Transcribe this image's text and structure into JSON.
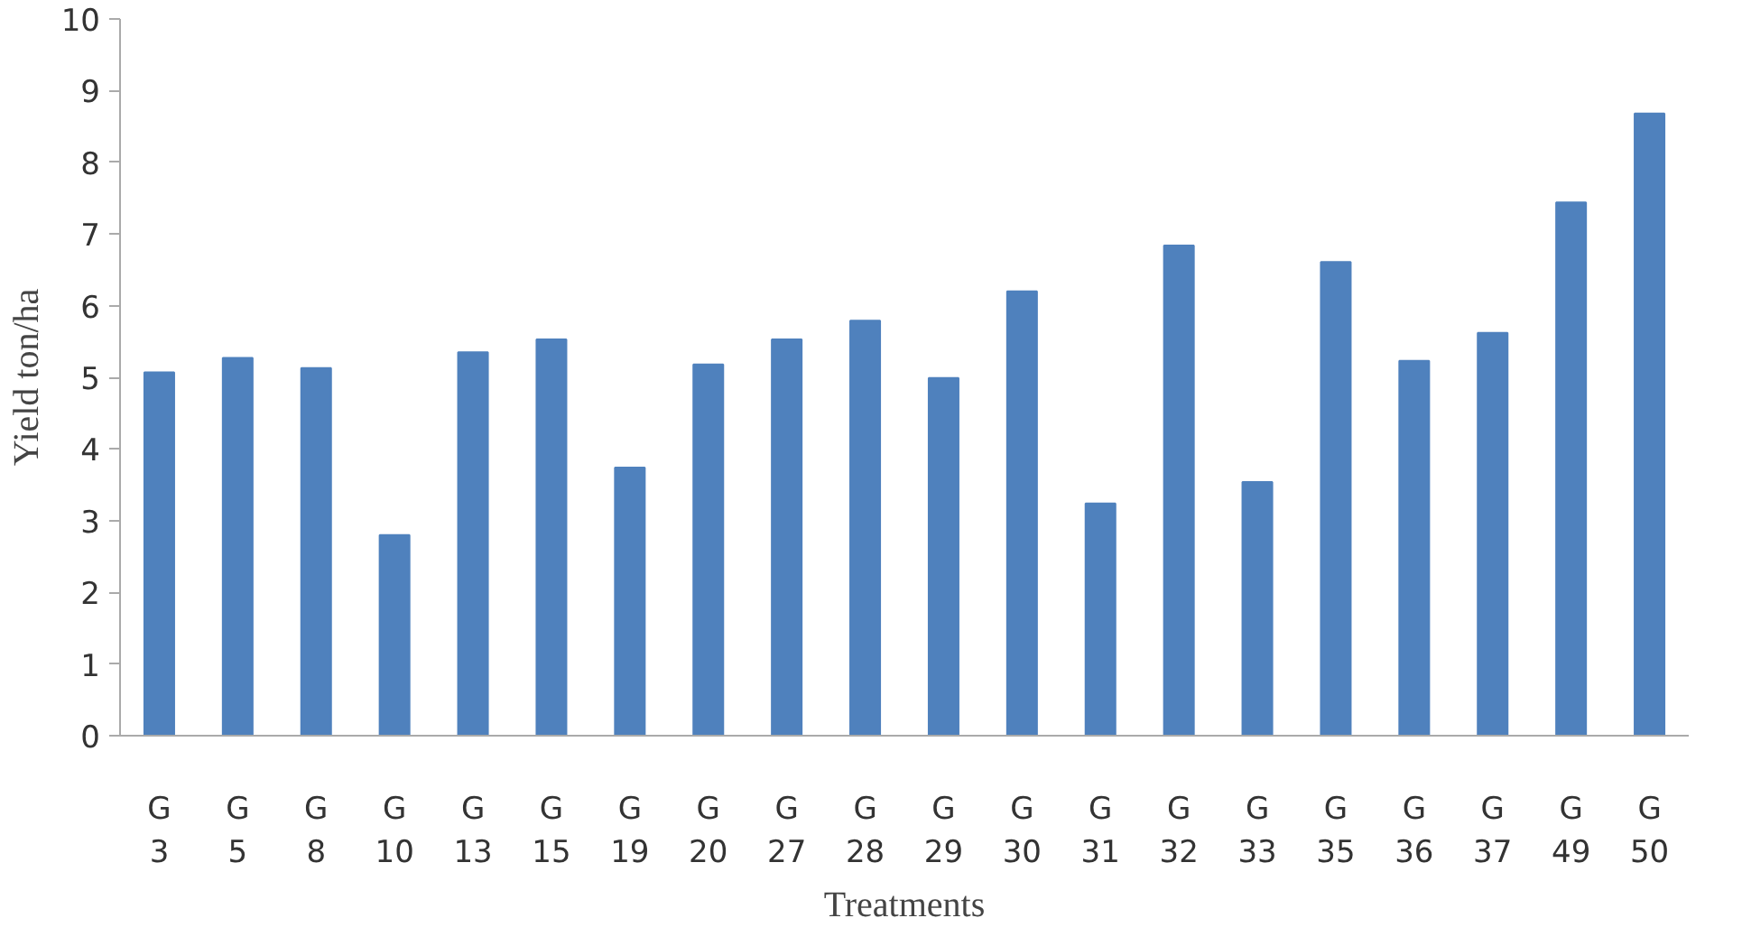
{
  "chart_data": {
    "type": "bar",
    "xlabel": "Treatments",
    "ylabel": "Yield ton/ha",
    "categories": [
      "G 3",
      "G 5",
      "G 8",
      "G 10",
      "G 13",
      "G 15",
      "G 19",
      "G 20",
      "G 27",
      "G 28",
      "G 29",
      "G 30",
      "G 31",
      "G 32",
      "G 33",
      "G 35",
      "G 36",
      "G 37",
      "G 49",
      "G 50"
    ],
    "values": [
      5.07,
      5.27,
      5.13,
      2.8,
      5.35,
      5.53,
      3.74,
      5.18,
      5.53,
      5.79,
      4.99,
      6.2,
      3.24,
      6.84,
      3.54,
      6.61,
      5.23,
      5.62,
      7.44,
      8.68
    ],
    "color": "#4f81bd",
    "ylim": [
      0,
      10
    ],
    "yticks": [
      0,
      1,
      2,
      3,
      4,
      5,
      6,
      7,
      8,
      9,
      10
    ],
    "grid": false
  }
}
